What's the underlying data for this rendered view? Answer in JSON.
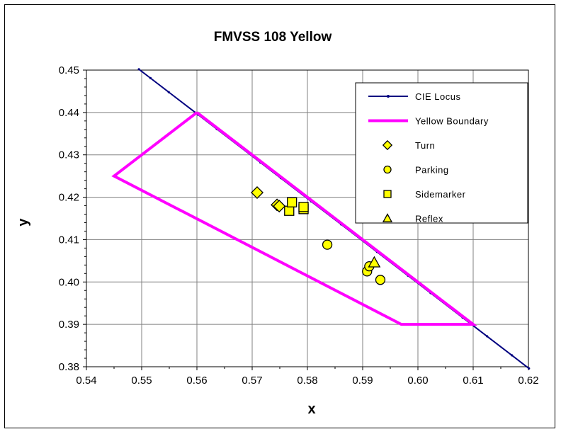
{
  "chart_data": {
    "type": "scatter",
    "title": "FMVSS 108 Yellow",
    "xlabel": "x",
    "ylabel": "y",
    "xlim": [
      0.54,
      0.62
    ],
    "ylim": [
      0.38,
      0.45
    ],
    "x_ticks": [
      "0.54",
      "0.55",
      "0.56",
      "0.57",
      "0.58",
      "0.59",
      "0.60",
      "0.61",
      "0.62"
    ],
    "y_ticks": [
      "0.38",
      "0.39",
      "0.40",
      "0.41",
      "0.42",
      "0.43",
      "0.44",
      "0.45"
    ],
    "grid": true,
    "legend_position": "top-right",
    "series": [
      {
        "name": "CIE Locus",
        "kind": "line-markers",
        "color": "#000080",
        "points": [
          [
            0.5495,
            0.4502
          ],
          [
            0.5516,
            0.4481
          ],
          [
            0.5549,
            0.4448
          ],
          [
            0.5602,
            0.4395
          ],
          [
            0.5636,
            0.4361
          ],
          [
            0.5715,
            0.4282
          ],
          [
            0.5752,
            0.4245
          ],
          [
            0.5807,
            0.419
          ],
          [
            0.5861,
            0.4136
          ],
          [
            0.5926,
            0.4071
          ],
          [
            0.5982,
            0.4015
          ],
          [
            0.6023,
            0.3974
          ],
          [
            0.6081,
            0.3916
          ],
          [
            0.6125,
            0.3872
          ],
          [
            0.617,
            0.3827
          ],
          [
            0.6201,
            0.3796
          ]
        ]
      },
      {
        "name": "Yellow Boundary",
        "kind": "line",
        "color": "#ff00ff",
        "points": [
          [
            0.56,
            0.44
          ],
          [
            0.545,
            0.425
          ],
          [
            0.597,
            0.39
          ],
          [
            0.61,
            0.39
          ],
          [
            0.56,
            0.44
          ]
        ]
      },
      {
        "name": "Turn",
        "kind": "marker",
        "marker": "diamond",
        "color": "#ffff00",
        "points": [
          [
            0.5709,
            0.4211
          ],
          [
            0.5745,
            0.4182
          ],
          [
            0.5749,
            0.4179
          ]
        ]
      },
      {
        "name": "Parking",
        "kind": "marker",
        "marker": "circle",
        "color": "#ffff00",
        "points": [
          [
            0.5836,
            0.4088
          ],
          [
            0.5908,
            0.4025
          ],
          [
            0.5912,
            0.4037
          ],
          [
            0.5932,
            0.4005
          ]
        ]
      },
      {
        "name": "Sidemarker",
        "kind": "marker",
        "marker": "square",
        "color": "#ffff00",
        "points": [
          [
            0.5767,
            0.4168
          ],
          [
            0.5772,
            0.4188
          ],
          [
            0.5793,
            0.4172
          ],
          [
            0.5793,
            0.4177
          ]
        ]
      },
      {
        "name": "Reflex",
        "kind": "marker",
        "marker": "triangle",
        "color": "#ffff00",
        "points": [
          [
            0.5921,
            0.4046
          ]
        ]
      }
    ]
  }
}
